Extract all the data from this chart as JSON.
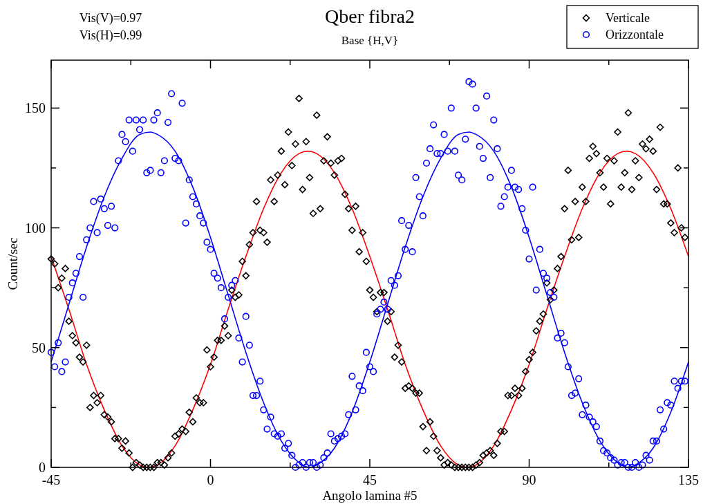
{
  "chart_data": {
    "type": "scatter",
    "title": "Qber fibra2",
    "subtitle": "Base {H,V}",
    "xlabel": "Angolo lamina #5",
    "ylabel": "Count/sec",
    "annotations": [
      "Vis(V)=0.97",
      "Vis(H)=0.99"
    ],
    "xlim": [
      -45,
      135
    ],
    "xticks": [
      -45,
      {
        "value": -22.5,
        "label": null
      },
      0,
      {
        "value": 22.5,
        "label": null
      },
      45,
      {
        "value": 67.5,
        "label": null
      },
      90,
      {
        "value": 112.5,
        "label": null
      },
      135
    ],
    "ylim": [
      0,
      170
    ],
    "yticks": [
      0,
      {
        "value": 25,
        "label": null
      },
      50,
      {
        "value": 75,
        "label": null
      },
      100,
      {
        "value": 125,
        "label": null
      },
      150
    ],
    "grid": false,
    "legend": "top right",
    "x": [
      -45,
      -44,
      -43,
      -42,
      -41,
      -40,
      -39,
      -38,
      -37,
      -36,
      -35,
      -34,
      -33,
      -32,
      -31,
      -30,
      -29,
      -28,
      -27,
      -26,
      -25,
      -24,
      -23,
      -22,
      -21,
      -20,
      -19,
      -18,
      -17,
      -16,
      -15,
      -14,
      -13,
      -12,
      -11,
      -10,
      -9,
      -8,
      -7,
      -6,
      -5,
      -4,
      -3,
      -2,
      -1,
      0,
      1,
      2,
      3,
      4,
      5,
      6,
      7,
      8,
      9,
      10,
      11,
      12,
      13,
      14,
      15,
      16,
      17,
      18,
      19,
      20,
      21,
      22,
      23,
      24,
      25,
      26,
      27,
      28,
      29,
      30,
      31,
      32,
      33,
      34,
      35,
      36,
      37,
      38,
      39,
      40,
      41,
      42,
      43,
      44,
      45,
      46,
      47,
      48,
      49,
      50,
      51,
      52,
      53,
      54,
      55,
      56,
      57,
      58,
      59,
      60,
      61,
      62,
      63,
      64,
      65,
      66,
      67,
      68,
      69,
      70,
      71,
      72,
      73,
      74,
      75,
      76,
      77,
      78,
      79,
      80,
      81,
      82,
      83,
      84,
      85,
      86,
      87,
      88,
      89,
      90,
      91,
      92,
      93,
      94,
      95,
      96,
      97,
      98,
      99,
      100,
      101,
      102,
      103,
      104,
      105,
      106,
      107,
      108,
      109,
      110,
      111,
      112,
      113,
      114,
      115,
      116,
      117,
      118,
      119,
      120,
      121,
      122,
      123,
      124,
      125,
      126,
      127,
      128,
      129,
      130,
      131,
      132,
      133,
      134
    ],
    "series": [
      {
        "name": "Verticale",
        "color": "#000000",
        "marker": "diamond",
        "values": [
          87,
          85,
          75,
          79,
          83,
          61,
          55,
          52,
          46,
          44,
          51,
          25,
          30,
          27,
          30,
          22,
          21,
          19,
          12,
          12,
          8,
          11,
          6,
          0,
          2,
          1,
          0,
          0,
          0,
          0,
          2,
          2,
          1,
          4,
          6,
          13,
          14,
          16,
          15,
          23,
          19,
          29,
          27,
          27,
          49,
          42,
          46,
          53,
          53,
          59,
          55,
          74,
          71,
          72,
          86,
          80,
          93,
          98,
          111,
          99,
          98,
          94,
          120,
          111,
          122,
          132,
          118,
          140,
          126,
          135,
          154,
          116,
          136,
          121,
          106,
          147,
          108,
          128,
          138,
          127,
          122,
          128,
          129,
          114,
          108,
          99,
          109,
          90,
          98,
          86,
          74,
          71,
          65,
          73,
          73,
          61,
          65,
          46,
          51,
          44,
          33,
          34,
          33,
          31,
          31,
          17,
          7,
          19,
          13,
          7,
          4,
          1,
          2,
          1,
          0,
          0,
          0,
          0,
          0,
          0,
          1,
          2,
          5,
          6,
          7,
          5,
          10,
          15,
          15,
          30,
          30,
          33,
          30,
          33,
          40,
          45,
          48,
          57,
          61,
          64,
          77,
          70,
          74,
          83,
          88,
          108,
          124,
          95,
          111,
          96,
          117,
          111,
          129,
          134,
          131,
          123,
          117,
          129,
          110,
          128,
          140,
          117,
          123,
          148,
          116,
          128,
          121,
          135,
          133,
          137,
          132,
          116,
          142,
          110,
          110,
          102,
          98,
          125,
          100,
          96
        ]
      },
      {
        "name": "Orizzontale",
        "color": "#0000ff",
        "marker": "circle",
        "values": [
          48,
          42,
          52,
          40,
          44,
          71,
          77,
          81,
          88,
          71,
          95,
          100,
          111,
          98,
          112,
          108,
          101,
          109,
          100,
          128,
          139,
          136,
          145,
          132,
          145,
          141,
          145,
          123,
          124,
          145,
          148,
          123,
          128,
          144,
          156,
          129,
          128,
          152,
          102,
          120,
          113,
          110,
          105,
          102,
          94,
          91,
          81,
          79,
          75,
          62,
          71,
          76,
          78,
          54,
          44,
          63,
          51,
          30,
          30,
          36,
          24,
          16,
          21,
          14,
          13,
          14,
          8,
          10,
          5,
          0,
          1,
          2,
          0,
          2,
          2,
          0,
          1,
          4,
          6,
          14,
          11,
          12,
          13,
          14,
          22,
          38,
          24,
          34,
          32,
          48,
          42,
          40,
          64,
          66,
          69,
          66,
          78,
          76,
          80,
          103,
          91,
          101,
          90,
          121,
          113,
          105,
          127,
          133,
          143,
          131,
          131,
          139,
          132,
          150,
          132,
          122,
          120,
          137,
          161,
          160,
          150,
          134,
          129,
          155,
          121,
          145,
          133,
          109,
          113,
          117,
          124,
          117,
          116,
          108,
          99,
          87,
          117,
          74,
          91,
          81,
          79,
          73,
          71,
          54,
          56,
          52,
          42,
          30,
          31,
          37,
          22,
          26,
          21,
          19,
          17,
          11,
          7,
          6,
          4,
          3,
          1,
          2,
          2,
          0,
          0,
          2,
          0,
          1,
          5,
          3,
          11,
          11,
          24,
          16,
          27,
          26,
          36,
          33,
          36,
          36
        ]
      },
      {
        "type": "line",
        "color": "#ff0000",
        "marker": "none",
        "x": [
          -45,
          -40,
          -35,
          -30,
          -25,
          -20,
          -17.5,
          -15,
          -10,
          -5,
          0,
          5,
          10,
          15,
          20,
          25,
          27.5,
          30,
          35,
          40,
          45,
          50,
          55,
          60,
          65,
          70,
          72.5,
          75,
          80,
          85,
          90,
          95,
          100,
          105,
          110,
          115,
          117.5,
          120,
          125,
          130,
          135
        ],
        "values": [
          88,
          66,
          43,
          24,
          9,
          1,
          0,
          1,
          9,
          24,
          43,
          66,
          88,
          108,
          123,
          131,
          132,
          131,
          123,
          108,
          88,
          66,
          43,
          24,
          9,
          1,
          0,
          1,
          9,
          24,
          43,
          66,
          88,
          108,
          123,
          131,
          132,
          131,
          123,
          108,
          88
        ]
      },
      {
        "type": "line",
        "color": "#0000ff",
        "marker": "none",
        "x": [
          -45,
          -40,
          -35,
          -30,
          -25,
          -20,
          -17,
          -15,
          -10,
          -5,
          0,
          5,
          10,
          15,
          20,
          25,
          28,
          30,
          35,
          40,
          45,
          50,
          55,
          60,
          65,
          70,
          73,
          75,
          80,
          85,
          90,
          95,
          100,
          105,
          110,
          115,
          118,
          120,
          125,
          130,
          135
        ],
        "values": [
          44,
          68,
          92,
          113,
          129,
          139,
          140,
          139,
          132,
          117,
          96,
          72,
          48,
          27,
          11,
          2,
          0,
          1,
          8,
          23,
          44,
          68,
          92,
          113,
          129,
          139,
          140,
          139,
          132,
          117,
          96,
          72,
          48,
          27,
          11,
          2,
          0,
          1,
          8,
          23,
          44
        ]
      }
    ]
  }
}
